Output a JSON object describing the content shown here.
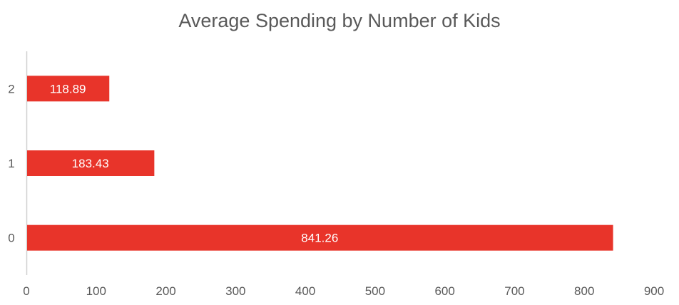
{
  "chart_data": {
    "type": "bar",
    "orientation": "horizontal",
    "title": "Average Spending by Number of Kids",
    "xlabel": "",
    "ylabel": "",
    "categories": [
      "0",
      "1",
      "2"
    ],
    "values": [
      841.26,
      183.43,
      118.89
    ],
    "data_labels": [
      "841.26",
      "183.43",
      "118.89"
    ],
    "xlim": [
      0,
      900
    ],
    "x_ticks": [
      "0",
      "100",
      "200",
      "300",
      "400",
      "500",
      "600",
      "700",
      "800",
      "900"
    ],
    "grid": false,
    "legend": "none",
    "bar_color": "#e8342a",
    "axis_color": "#d0d0d0",
    "text_color": "#595959"
  }
}
